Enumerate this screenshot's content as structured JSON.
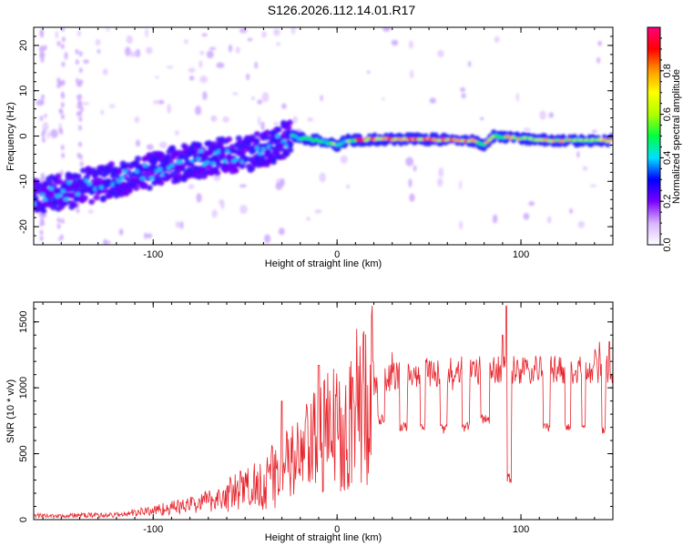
{
  "title": "S126.2026.112.14.01.R17",
  "chart_data": [
    {
      "type": "heatmap",
      "name": "spectrogram",
      "xlabel": "Height of straight line (km)",
      "ylabel": "Frequency (Hz)",
      "xlim": [
        -165,
        150
      ],
      "ylim": [
        -24,
        24
      ],
      "x_ticks": [
        -100,
        0,
        100
      ],
      "y_ticks": [
        -20,
        -10,
        0,
        10,
        20
      ],
      "x_tick_labels": [
        "-100",
        "0",
        "100"
      ],
      "y_tick_labels": [
        "-20",
        "-10",
        "0",
        "10",
        "20"
      ],
      "ridge": [
        {
          "x": -165,
          "f": -13
        },
        {
          "x": -150,
          "f": -12.5
        },
        {
          "x": -140,
          "f": -11.5
        },
        {
          "x": -130,
          "f": -10.5
        },
        {
          "x": -120,
          "f": -9.5
        },
        {
          "x": -110,
          "f": -8.5
        },
        {
          "x": -100,
          "f": -7.5
        },
        {
          "x": -90,
          "f": -6.5
        },
        {
          "x": -80,
          "f": -5.5
        },
        {
          "x": -70,
          "f": -5
        },
        {
          "x": -60,
          "f": -4
        },
        {
          "x": -50,
          "f": -4
        },
        {
          "x": -40,
          "f": -3
        },
        {
          "x": -30,
          "f": -1
        },
        {
          "x": -25,
          "f": 0
        },
        {
          "x": -20,
          "f": -0.5
        },
        {
          "x": -10,
          "f": -1
        },
        {
          "x": 0,
          "f": -2
        },
        {
          "x": 5,
          "f": -1
        },
        {
          "x": 20,
          "f": -0.7
        },
        {
          "x": 50,
          "f": -0.7
        },
        {
          "x": 75,
          "f": -1
        },
        {
          "x": 80,
          "f": -2
        },
        {
          "x": 85,
          "f": 0
        },
        {
          "x": 100,
          "f": -0.5
        },
        {
          "x": 120,
          "f": -1
        },
        {
          "x": 150,
          "f": -1
        }
      ],
      "colorbar": {
        "label": "Normalized spectral amplitude",
        "min": 0.0,
        "max": 1.0,
        "ticks": [
          0.0,
          0.2,
          0.4,
          0.6,
          0.8
        ],
        "tick_labels": [
          "0.0",
          "0.2",
          "0.4",
          "0.6",
          "0.8"
        ],
        "colors": [
          "#ffffff",
          "#d9b3ff",
          "#7a00ff",
          "#0000ff",
          "#00e0ff",
          "#00ff40",
          "#b0ff00",
          "#ffff00",
          "#ff9900",
          "#ff0000",
          "#ff0080"
        ]
      }
    },
    {
      "type": "line",
      "name": "snr",
      "xlabel": "Height of straight line (km)",
      "ylabel": "SNR (10 * v/v)",
      "xlim": [
        -165,
        150
      ],
      "ylim": [
        0,
        1650
      ],
      "x_ticks": [
        -100,
        0,
        100
      ],
      "y_ticks": [
        0,
        500,
        1000,
        1500
      ],
      "x_tick_labels": [
        "-100",
        "0",
        "100"
      ],
      "y_tick_labels": [
        "0",
        "500",
        "1000",
        "1500"
      ],
      "color": "#e8232b",
      "trend": [
        {
          "x": -165,
          "y": 30
        },
        {
          "x": -150,
          "y": 30
        },
        {
          "x": -120,
          "y": 35
        },
        {
          "x": -100,
          "y": 70
        },
        {
          "x": -80,
          "y": 110
        },
        {
          "x": -60,
          "y": 180
        },
        {
          "x": -40,
          "y": 290
        },
        {
          "x": -30,
          "y": 370
        },
        {
          "x": -20,
          "y": 470
        },
        {
          "x": -10,
          "y": 590
        },
        {
          "x": 0,
          "y": 700
        },
        {
          "x": 10,
          "y": 830
        },
        {
          "x": 20,
          "y": 1000
        },
        {
          "x": 30,
          "y": 1090
        },
        {
          "x": 50,
          "y": 1120
        },
        {
          "x": 80,
          "y": 1130
        },
        {
          "x": 100,
          "y": 1130
        },
        {
          "x": 150,
          "y": 1140
        }
      ],
      "dips": [
        {
          "x0": 22,
          "x1": 26,
          "y": 760
        },
        {
          "x0": 34,
          "x1": 38,
          "y": 700
        },
        {
          "x0": 45,
          "x1": 48,
          "y": 700
        },
        {
          "x0": 56,
          "x1": 60,
          "y": 690
        },
        {
          "x0": 68,
          "x1": 72,
          "y": 700
        },
        {
          "x0": 78,
          "x1": 83,
          "y": 760
        },
        {
          "x0": 92,
          "x1": 95,
          "y": 310
        },
        {
          "x0": 112,
          "x1": 116,
          "y": 700
        },
        {
          "x0": 124,
          "x1": 127,
          "y": 700
        },
        {
          "x0": 133,
          "x1": 135,
          "y": 700
        },
        {
          "x0": 144,
          "x1": 146,
          "y": 680
        }
      ],
      "peaks": [
        {
          "x": 92,
          "y": 1620
        },
        {
          "x": -10,
          "y": 1170
        },
        {
          "x": 90,
          "y": 1400
        },
        {
          "x": 148,
          "y": 1350
        },
        {
          "x": -30,
          "y": 900
        }
      ]
    }
  ]
}
